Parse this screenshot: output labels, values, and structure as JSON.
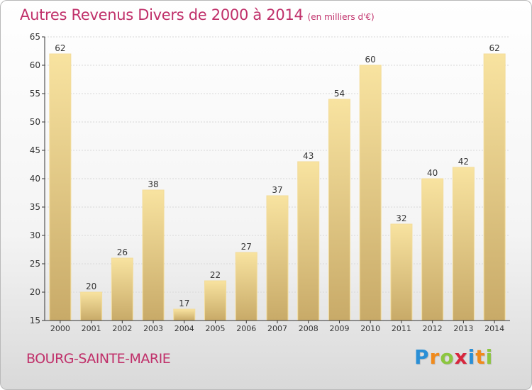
{
  "title": "Autres Revenus Divers de 2000 à 2014",
  "subtitle": "(en milliers d'€)",
  "town": "BOURG-SAINTE-MARIE",
  "logo": {
    "letters": [
      {
        "char": "P",
        "color": "#2a8fd6"
      },
      {
        "char": "r",
        "color": "#f08a1c"
      },
      {
        "char": "o",
        "color": "#8cc63f"
      },
      {
        "char": "x",
        "color": "#d7263d"
      },
      {
        "char": "i",
        "color": "#2a8fd6"
      },
      {
        "char": "t",
        "color": "#f08a1c"
      },
      {
        "char": "i",
        "color": "#8cc63f"
      }
    ]
  },
  "colors": {
    "bar_top": "#f8e3a0",
    "bar_bottom": "#c8aa68",
    "bar_edge": "#f3dc9a",
    "grid": "#d8d8d8",
    "axis": "#333333",
    "text": "#333333"
  },
  "chart_data": {
    "type": "bar",
    "categories": [
      "2000",
      "2001",
      "2002",
      "2003",
      "2004",
      "2005",
      "2006",
      "2007",
      "2008",
      "2009",
      "2010",
      "2011",
      "2012",
      "2013",
      "2014"
    ],
    "values": [
      62,
      20,
      26,
      38,
      17,
      22,
      27,
      37,
      43,
      54,
      60,
      32,
      40,
      42,
      62
    ],
    "ylim": [
      15,
      65
    ],
    "yticks": [
      15,
      20,
      25,
      30,
      35,
      40,
      45,
      50,
      55,
      60,
      65
    ],
    "grid": true
  }
}
